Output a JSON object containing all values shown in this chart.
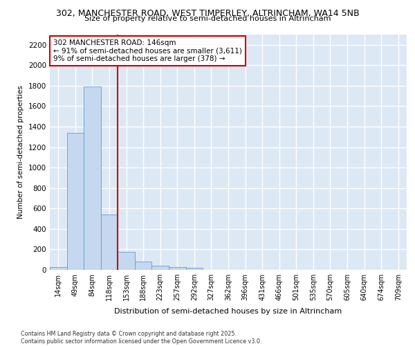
{
  "title_line1": "302, MANCHESTER ROAD, WEST TIMPERLEY, ALTRINCHAM, WA14 5NB",
  "title_line2": "Size of property relative to semi-detached houses in Altrincham",
  "xlabel": "Distribution of semi-detached houses by size in Altrincham",
  "ylabel": "Number of semi-detached properties",
  "categories": [
    "14sqm",
    "49sqm",
    "84sqm",
    "118sqm",
    "153sqm",
    "188sqm",
    "223sqm",
    "257sqm",
    "292sqm",
    "327sqm",
    "362sqm",
    "396sqm",
    "431sqm",
    "466sqm",
    "501sqm",
    "535sqm",
    "570sqm",
    "605sqm",
    "640sqm",
    "674sqm",
    "709sqm"
  ],
  "values": [
    30,
    1340,
    1790,
    540,
    175,
    82,
    38,
    30,
    22,
    0,
    0,
    0,
    0,
    0,
    0,
    0,
    0,
    0,
    0,
    0,
    0
  ],
  "bar_color": "#c5d8f0",
  "bar_edge_color": "#6699cc",
  "property_line_x": 4.0,
  "annotation_title": "302 MANCHESTER ROAD: 146sqm",
  "annotation_line1": "← 91% of semi-detached houses are smaller (3,611)",
  "annotation_line2": "9% of semi-detached houses are larger (378) →",
  "annotation_box_color": "#ffffff",
  "annotation_box_edge": "#cc0000",
  "vline_color": "#cc0000",
  "ylim": [
    0,
    2300
  ],
  "yticks": [
    0,
    200,
    400,
    600,
    800,
    1000,
    1200,
    1400,
    1600,
    1800,
    2000,
    2200
  ],
  "background_color": "#dde8f5",
  "grid_color": "#ffffff",
  "footer_line1": "Contains HM Land Registry data © Crown copyright and database right 2025.",
  "footer_line2": "Contains public sector information licensed under the Open Government Licence v3.0."
}
